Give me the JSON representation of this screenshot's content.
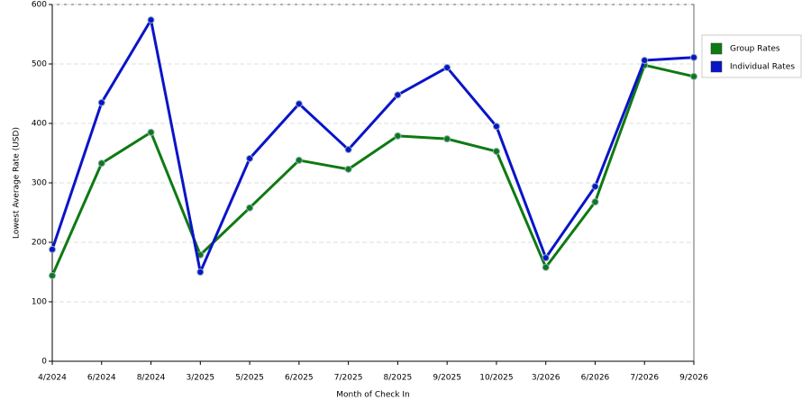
{
  "chart_data": {
    "type": "line",
    "x_label": "Month of Check In",
    "y_label": "Lowest Average Rate (USD)",
    "categories": [
      "4/2024",
      "6/2024",
      "8/2024",
      "3/2025",
      "5/2025",
      "6/2025",
      "7/2025",
      "8/2025",
      "9/2025",
      "10/2025",
      "3/2026",
      "6/2026",
      "7/2026",
      "9/2026"
    ],
    "series": [
      {
        "name": "Group Rates",
        "color": "#0e7a12",
        "values": [
          144,
          333,
          385,
          179,
          258,
          338,
          323,
          379,
          374,
          353,
          158,
          268,
          498,
          479
        ]
      },
      {
        "name": "Individual Rates",
        "color": "#0a14c8",
        "values": [
          188,
          435,
          574,
          150,
          341,
          433,
          356,
          448,
          494,
          395,
          174,
          294,
          506,
          511
        ]
      }
    ],
    "ylim": [
      0,
      600
    ],
    "yticks": [
      0,
      100,
      200,
      300,
      400,
      500,
      600
    ],
    "grid": true,
    "legend": "right"
  }
}
